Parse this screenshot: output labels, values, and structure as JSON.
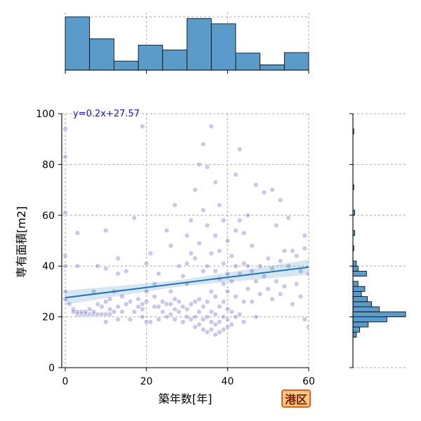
{
  "badge": {
    "label": "港区",
    "bg": "#f6c882",
    "border": "#e8601c"
  },
  "chart_data": {
    "type": "scatter",
    "xlabel": "築年数[年]",
    "ylabel": "専有面積[m2]",
    "xlim": [
      0,
      60
    ],
    "ylim": [
      0,
      100
    ],
    "x_ticks": [
      0,
      20,
      40,
      60
    ],
    "y_ticks": [
      0,
      20,
      40,
      60,
      80,
      100
    ],
    "grid": true,
    "regression": {
      "label": "y=0.2x+27.57",
      "slope": 0.2,
      "intercept": 27.57,
      "color": "#1f77b4"
    },
    "point_color": "#3b3bb8",
    "bar_color": "#5b9bc9",
    "x_histogram": {
      "bins": [
        0,
        6,
        12,
        18,
        24,
        30,
        36,
        42,
        48,
        54,
        60
      ],
      "counts": [
        100,
        59,
        17,
        47,
        38,
        97,
        87,
        32,
        10,
        33
      ]
    },
    "y_histogram": {
      "bins": [
        0,
        2,
        4,
        6,
        8,
        10,
        12,
        14,
        16,
        18,
        20,
        22,
        24,
        26,
        28,
        30,
        32,
        34,
        36,
        38,
        40,
        42,
        44,
        46,
        48,
        50,
        52,
        54,
        56,
        58,
        60,
        62,
        64,
        66,
        68,
        70,
        72,
        74,
        76,
        78,
        80,
        82,
        84,
        86,
        88,
        90,
        92,
        94,
        96,
        98,
        100
      ],
      "counts": [
        0,
        0,
        0,
        0,
        0,
        0,
        4,
        8,
        18,
        40,
        62,
        31,
        22,
        17,
        10,
        14,
        6,
        0,
        16,
        6,
        4,
        0,
        0,
        1,
        0,
        0,
        2,
        0,
        0,
        0,
        2,
        0,
        0,
        0,
        0,
        1,
        0,
        0,
        0,
        0,
        0,
        0,
        0,
        0,
        0,
        0,
        1,
        0,
        0,
        0
      ]
    },
    "points": [
      [
        0,
        94
      ],
      [
        0,
        83
      ],
      [
        0,
        61
      ],
      [
        0,
        44
      ],
      [
        0,
        40
      ],
      [
        0,
        30
      ],
      [
        0,
        27
      ],
      [
        1,
        25
      ],
      [
        2,
        23
      ],
      [
        2,
        22
      ],
      [
        3,
        21
      ],
      [
        3,
        22
      ],
      [
        3,
        40
      ],
      [
        3,
        53
      ],
      [
        4,
        21
      ],
      [
        4,
        22
      ],
      [
        5,
        21
      ],
      [
        5,
        22
      ],
      [
        6,
        21
      ],
      [
        6,
        23
      ],
      [
        7,
        21
      ],
      [
        7,
        22
      ],
      [
        7,
        30
      ],
      [
        8,
        21
      ],
      [
        8,
        25
      ],
      [
        8,
        40
      ],
      [
        9,
        21
      ],
      [
        9,
        24
      ],
      [
        10,
        18
      ],
      [
        10,
        21
      ],
      [
        10,
        26
      ],
      [
        10,
        39
      ],
      [
        10,
        54
      ],
      [
        11,
        21
      ],
      [
        11,
        23
      ],
      [
        11,
        27
      ],
      [
        12,
        22
      ],
      [
        12,
        30
      ],
      [
        13,
        19
      ],
      [
        13,
        24
      ],
      [
        13,
        37
      ],
      [
        13,
        43
      ],
      [
        14,
        22
      ],
      [
        14,
        28
      ],
      [
        15,
        25
      ],
      [
        15,
        38
      ],
      [
        16,
        19
      ],
      [
        16,
        26
      ],
      [
        17,
        59
      ],
      [
        17,
        22
      ],
      [
        18,
        24
      ],
      [
        18,
        27
      ],
      [
        19,
        20
      ],
      [
        19,
        23
      ],
      [
        19,
        25
      ],
      [
        19,
        95
      ],
      [
        20,
        18
      ],
      [
        20,
        26
      ],
      [
        20,
        30
      ],
      [
        20,
        41
      ],
      [
        21,
        18
      ],
      [
        21,
        45
      ],
      [
        22,
        24
      ],
      [
        22,
        28
      ],
      [
        22,
        33
      ],
      [
        23,
        19
      ],
      [
        23,
        24
      ],
      [
        23,
        37
      ],
      [
        24,
        22
      ],
      [
        24,
        26
      ],
      [
        25,
        20
      ],
      [
        25,
        25
      ],
      [
        25,
        54
      ],
      [
        26,
        21
      ],
      [
        26,
        25
      ],
      [
        26,
        30
      ],
      [
        26,
        48
      ],
      [
        27,
        19
      ],
      [
        27,
        23
      ],
      [
        27,
        27
      ],
      [
        27,
        64
      ],
      [
        28,
        22
      ],
      [
        28,
        26
      ],
      [
        28,
        40
      ],
      [
        29,
        18
      ],
      [
        29,
        24
      ],
      [
        29,
        36
      ],
      [
        30,
        20
      ],
      [
        30,
        23
      ],
      [
        30,
        33
      ],
      [
        30,
        41
      ],
      [
        30,
        52
      ],
      [
        31,
        19
      ],
      [
        31,
        25
      ],
      [
        31,
        45
      ],
      [
        31,
        58
      ],
      [
        32,
        16
      ],
      [
        32,
        20
      ],
      [
        32,
        26
      ],
      [
        32,
        43
      ],
      [
        32,
        70
      ],
      [
        33,
        17
      ],
      [
        33,
        22
      ],
      [
        33,
        27
      ],
      [
        33,
        49
      ],
      [
        33,
        80
      ],
      [
        34,
        15
      ],
      [
        34,
        19
      ],
      [
        34,
        24
      ],
      [
        34,
        38
      ],
      [
        34,
        62
      ],
      [
        34,
        88
      ],
      [
        35,
        14
      ],
      [
        35,
        20
      ],
      [
        35,
        26
      ],
      [
        35,
        40
      ],
      [
        35,
        56
      ],
      [
        35,
        79
      ],
      [
        36,
        15
      ],
      [
        36,
        18
      ],
      [
        36,
        22
      ],
      [
        36,
        30
      ],
      [
        36,
        45
      ],
      [
        36,
        95
      ],
      [
        37,
        13
      ],
      [
        37,
        17
      ],
      [
        37,
        21
      ],
      [
        37,
        28
      ],
      [
        37,
        38
      ],
      [
        37,
        52
      ],
      [
        37,
        73
      ],
      [
        38,
        14
      ],
      [
        38,
        18
      ],
      [
        38,
        24
      ],
      [
        38,
        35
      ],
      [
        38,
        46
      ],
      [
        38,
        64
      ],
      [
        39,
        15
      ],
      [
        39,
        20
      ],
      [
        39,
        26
      ],
      [
        39,
        33
      ],
      [
        39,
        41
      ],
      [
        39,
        58
      ],
      [
        40,
        16
      ],
      [
        40,
        19
      ],
      [
        40,
        23
      ],
      [
        40,
        30
      ],
      [
        40,
        37
      ],
      [
        40,
        50
      ],
      [
        41,
        17
      ],
      [
        41,
        22
      ],
      [
        41,
        34
      ],
      [
        41,
        44
      ],
      [
        42,
        20
      ],
      [
        42,
        28
      ],
      [
        42,
        40
      ],
      [
        42,
        54
      ],
      [
        42,
        76
      ],
      [
        43,
        21
      ],
      [
        43,
        37
      ],
      [
        43,
        58
      ],
      [
        43,
        86
      ],
      [
        44,
        18
      ],
      [
        44,
        26
      ],
      [
        44,
        41
      ],
      [
        44,
        53
      ],
      [
        45,
        31
      ],
      [
        45,
        40
      ],
      [
        45,
        60
      ],
      [
        46,
        26
      ],
      [
        46,
        38
      ],
      [
        46,
        48
      ],
      [
        47,
        20
      ],
      [
        47,
        34
      ],
      [
        47,
        72
      ],
      [
        48,
        29
      ],
      [
        48,
        40
      ],
      [
        49,
        36
      ],
      [
        49,
        69
      ],
      [
        50,
        31
      ],
      [
        50,
        43
      ],
      [
        51,
        27
      ],
      [
        51,
        39
      ],
      [
        51,
        70
      ],
      [
        52,
        34
      ],
      [
        52,
        56
      ],
      [
        53,
        29
      ],
      [
        53,
        42
      ],
      [
        53,
        66
      ],
      [
        54,
        32
      ],
      [
        54,
        46
      ],
      [
        55,
        40
      ],
      [
        55,
        59
      ],
      [
        56,
        25
      ],
      [
        56,
        46
      ],
      [
        57,
        33
      ],
      [
        57,
        44
      ],
      [
        58,
        28
      ],
      [
        58,
        38
      ],
      [
        59,
        19
      ],
      [
        59,
        47
      ],
      [
        59,
        52
      ],
      [
        60,
        16
      ],
      [
        60,
        37
      ]
    ]
  }
}
